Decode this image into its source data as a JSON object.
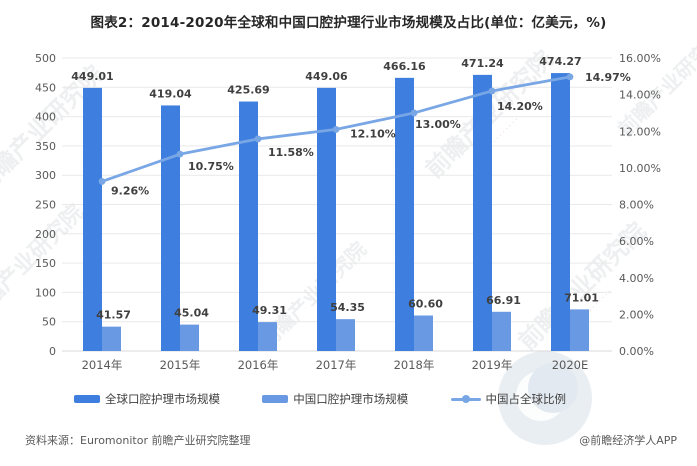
{
  "title": "图表2：2014-2020年全球和中国口腔护理行业市场规模及占比(单位：亿美元，%)",
  "chart_data": {
    "type": "bar+line",
    "categories": [
      "2014年",
      "2015年",
      "2016年",
      "2017年",
      "2018年",
      "2019年",
      "2020E"
    ],
    "series": [
      {
        "name": "全球口腔护理市场规模",
        "type": "bar",
        "axis": "left",
        "values": [
          449.01,
          419.04,
          425.69,
          449.06,
          466.16,
          471.24,
          474.27
        ],
        "color": "#3e7ede"
      },
      {
        "name": "中国口腔护理市场规模",
        "type": "bar",
        "axis": "left",
        "values": [
          41.57,
          45.04,
          49.31,
          54.35,
          60.6,
          66.91,
          71.01
        ],
        "color": "#6899e2"
      },
      {
        "name": "中国占全球比例",
        "type": "line",
        "axis": "right",
        "values": [
          9.26,
          10.75,
          11.58,
          12.1,
          13.0,
          14.2,
          14.97
        ],
        "color": "#79a7e5"
      }
    ],
    "left_axis": {
      "min": 0,
      "max": 500,
      "step": 50
    },
    "right_axis": {
      "min": 0,
      "max": 16,
      "step": 2,
      "format": "percent",
      "decimals": 2
    },
    "grid": true,
    "legend_position": "bottom",
    "colors": {
      "grid": "#e9e9e9",
      "baseline": "#d9d9d9",
      "axis_text": "#595959",
      "data_label": "#404040"
    }
  },
  "footer": {
    "source": "资料来源：Euromonitor 前瞻产业研究院整理",
    "credit": "@前瞻经济学人APP"
  },
  "watermark": {
    "text": "前瞻产业研究院",
    "dots": "· · · · · · · ·"
  }
}
